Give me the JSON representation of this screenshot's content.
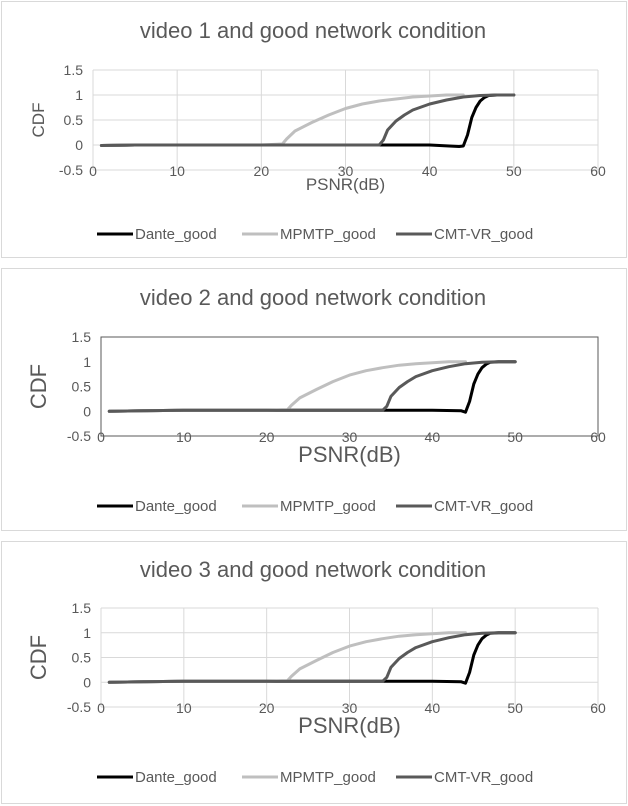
{
  "series_style": [
    {
      "name": "Dante_good",
      "color": "#000000"
    },
    {
      "name": "MPMTP_good",
      "color": "#bfbfbf"
    },
    {
      "name": "CMT-VR_good",
      "color": "#595959"
    }
  ],
  "chart_data": [
    {
      "type": "line",
      "title": "video 1 and good network condition",
      "xlabel": "PSNR(dB)",
      "ylabel": "CDF",
      "xlim": [
        0,
        60
      ],
      "ylim": [
        -0.5,
        1.5
      ],
      "xticks": [
        0,
        10,
        20,
        30,
        40,
        50,
        60
      ],
      "yticks": [
        -0.5,
        0,
        0.5,
        1,
        1.5
      ],
      "grid": true,
      "legend": "bottom",
      "series": [
        {
          "name": "Dante_good",
          "x": [
            1,
            5,
            10,
            20,
            30,
            40,
            43.5,
            44,
            44.5,
            45,
            45.5,
            46,
            46.5,
            47,
            48,
            50
          ],
          "y": [
            -0.01,
            0,
            0,
            0,
            0,
            0,
            -0.03,
            -0.02,
            0.2,
            0.55,
            0.75,
            0.88,
            0.95,
            0.99,
            1,
            1
          ]
        },
        {
          "name": "MPMTP_good",
          "x": [
            1,
            5,
            10,
            20,
            22.5,
            23,
            24,
            26,
            28,
            30,
            32,
            34,
            36,
            38,
            40,
            42,
            44
          ],
          "y": [
            -0.01,
            0,
            0,
            0,
            0.02,
            0.12,
            0.28,
            0.45,
            0.6,
            0.73,
            0.82,
            0.88,
            0.92,
            0.96,
            0.98,
            1,
            1
          ]
        },
        {
          "name": "CMT-VR_good",
          "x": [
            1,
            5,
            10,
            20,
            30,
            34,
            34.5,
            35,
            36,
            37,
            38,
            40,
            42,
            44,
            46,
            48,
            50
          ],
          "y": [
            -0.01,
            0,
            0,
            0,
            0,
            0,
            0.1,
            0.3,
            0.48,
            0.6,
            0.7,
            0.82,
            0.9,
            0.96,
            0.99,
            1,
            1
          ]
        }
      ]
    },
    {
      "type": "line",
      "title": "video 2 and good network condition",
      "xlabel": "PSNR(dB)",
      "ylabel": "CDF",
      "xlim": [
        0,
        60
      ],
      "ylim": [
        -0.5,
        1.5
      ],
      "xticks": [
        0,
        10,
        20,
        30,
        40,
        50,
        60
      ],
      "yticks": [
        -0.5,
        0,
        0.5,
        1,
        1.5
      ],
      "grid": false,
      "legend": "bottom",
      "series": [
        {
          "name": "Dante_good",
          "x": [
            1,
            5,
            10,
            20,
            30,
            40,
            43.5,
            44,
            44.5,
            45,
            45.5,
            46,
            46.5,
            47,
            48,
            50
          ],
          "y": [
            0,
            0.01,
            0.02,
            0.02,
            0.02,
            0.02,
            0.01,
            -0.02,
            0.2,
            0.55,
            0.75,
            0.88,
            0.95,
            0.99,
            1,
            1
          ]
        },
        {
          "name": "MPMTP_good",
          "x": [
            1,
            5,
            10,
            20,
            22.5,
            23,
            24,
            26,
            28,
            30,
            32,
            34,
            36,
            38,
            40,
            42,
            44
          ],
          "y": [
            0,
            0.01,
            0.02,
            0.02,
            0.03,
            0.12,
            0.27,
            0.44,
            0.6,
            0.73,
            0.82,
            0.88,
            0.93,
            0.96,
            0.98,
            1,
            1
          ]
        },
        {
          "name": "CMT-VR_good",
          "x": [
            1,
            5,
            10,
            20,
            30,
            34,
            34.5,
            35,
            36,
            37,
            38,
            40,
            42,
            44,
            46,
            48,
            50
          ],
          "y": [
            0,
            0.01,
            0.02,
            0.02,
            0.02,
            0.02,
            0.1,
            0.3,
            0.48,
            0.6,
            0.7,
            0.82,
            0.9,
            0.96,
            0.99,
            1,
            1
          ]
        }
      ]
    },
    {
      "type": "line",
      "title": "video 3 and good network condition",
      "xlabel": "PSNR(dB)",
      "ylabel": "CDF",
      "xlim": [
        0,
        60
      ],
      "ylim": [
        -0.5,
        1.5
      ],
      "xticks": [
        0,
        10,
        20,
        30,
        40,
        50,
        60
      ],
      "yticks": [
        -0.5,
        0,
        0.5,
        1,
        1.5
      ],
      "grid": true,
      "legend": "bottom",
      "series": [
        {
          "name": "Dante_good",
          "x": [
            1,
            5,
            10,
            20,
            30,
            40,
            43.5,
            44,
            44.5,
            45,
            45.5,
            46,
            46.5,
            47,
            48,
            50
          ],
          "y": [
            0,
            0.01,
            0.02,
            0.02,
            0.02,
            0.02,
            0.01,
            -0.02,
            0.2,
            0.55,
            0.75,
            0.88,
            0.95,
            0.99,
            1,
            1
          ]
        },
        {
          "name": "MPMTP_good",
          "x": [
            1,
            5,
            10,
            20,
            22.5,
            23,
            24,
            26,
            28,
            30,
            32,
            34,
            36,
            38,
            40,
            42,
            44
          ],
          "y": [
            0,
            0.01,
            0.02,
            0.02,
            0.03,
            0.12,
            0.27,
            0.44,
            0.6,
            0.73,
            0.82,
            0.88,
            0.93,
            0.96,
            0.98,
            1,
            1
          ]
        },
        {
          "name": "CMT-VR_good",
          "x": [
            1,
            5,
            10,
            20,
            30,
            34,
            34.5,
            35,
            36,
            37,
            38,
            40,
            42,
            44,
            46,
            48,
            50
          ],
          "y": [
            0,
            0.01,
            0.02,
            0.02,
            0.02,
            0.02,
            0.1,
            0.3,
            0.48,
            0.6,
            0.7,
            0.82,
            0.9,
            0.96,
            0.99,
            1,
            1
          ]
        }
      ]
    }
  ]
}
